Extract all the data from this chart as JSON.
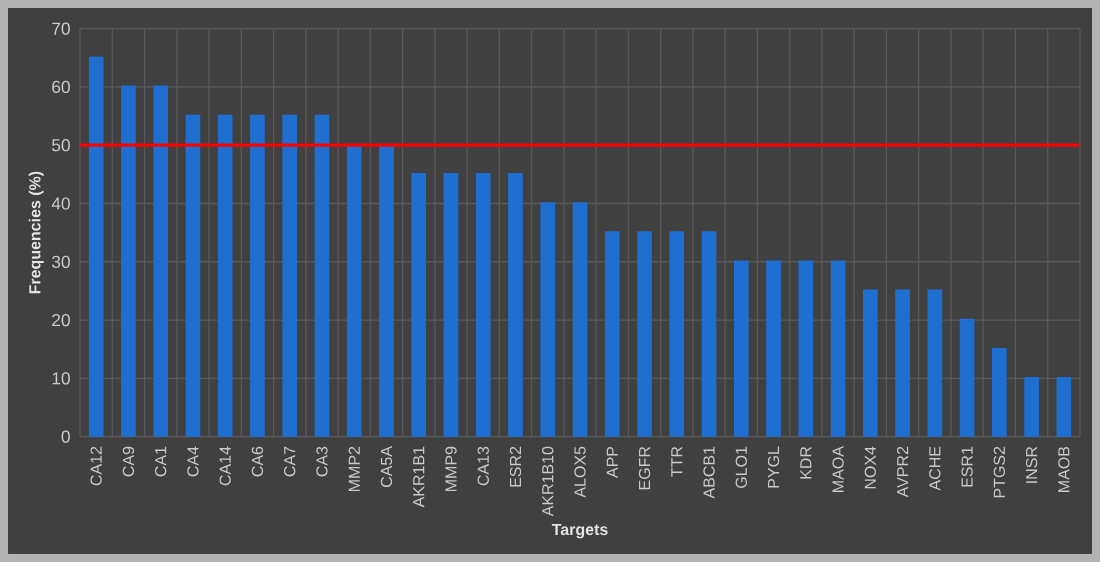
{
  "chart_data": {
    "type": "bar",
    "xlabel": "Targets",
    "ylabel": "Frequencies (%)",
    "categories": [
      "CA12",
      "CA9",
      "CA1",
      "CA4",
      "CA14",
      "CA6",
      "CA7",
      "CA3",
      "MMP2",
      "CA5A",
      "AKR1B1",
      "MMP9",
      "CA13",
      "ESR2",
      "AKR1B10",
      "ALOX5",
      "APP",
      "EGFR",
      "TTR",
      "ABCB1",
      "GLO1",
      "PYGL",
      "KDR",
      "MAOA",
      "NOX4",
      "AVPR2",
      "ACHE",
      "ESR1",
      "PTGS2",
      "INSR",
      "MAOB"
    ],
    "values": [
      65,
      60,
      60,
      55,
      55,
      55,
      55,
      55,
      50,
      50,
      45,
      45,
      45,
      45,
      40,
      40,
      35,
      35,
      35,
      35,
      30,
      30,
      30,
      30,
      25,
      25,
      25,
      20,
      15,
      10,
      10
    ],
    "color": "#1f6fd0",
    "ylim": [
      0,
      70
    ],
    "yticks": [
      0,
      10,
      20,
      30,
      40,
      50,
      60,
      70
    ],
    "grid": true,
    "ref_lines": [
      {
        "axis": "y",
        "value": 50,
        "color": "#ff0000"
      }
    ]
  }
}
